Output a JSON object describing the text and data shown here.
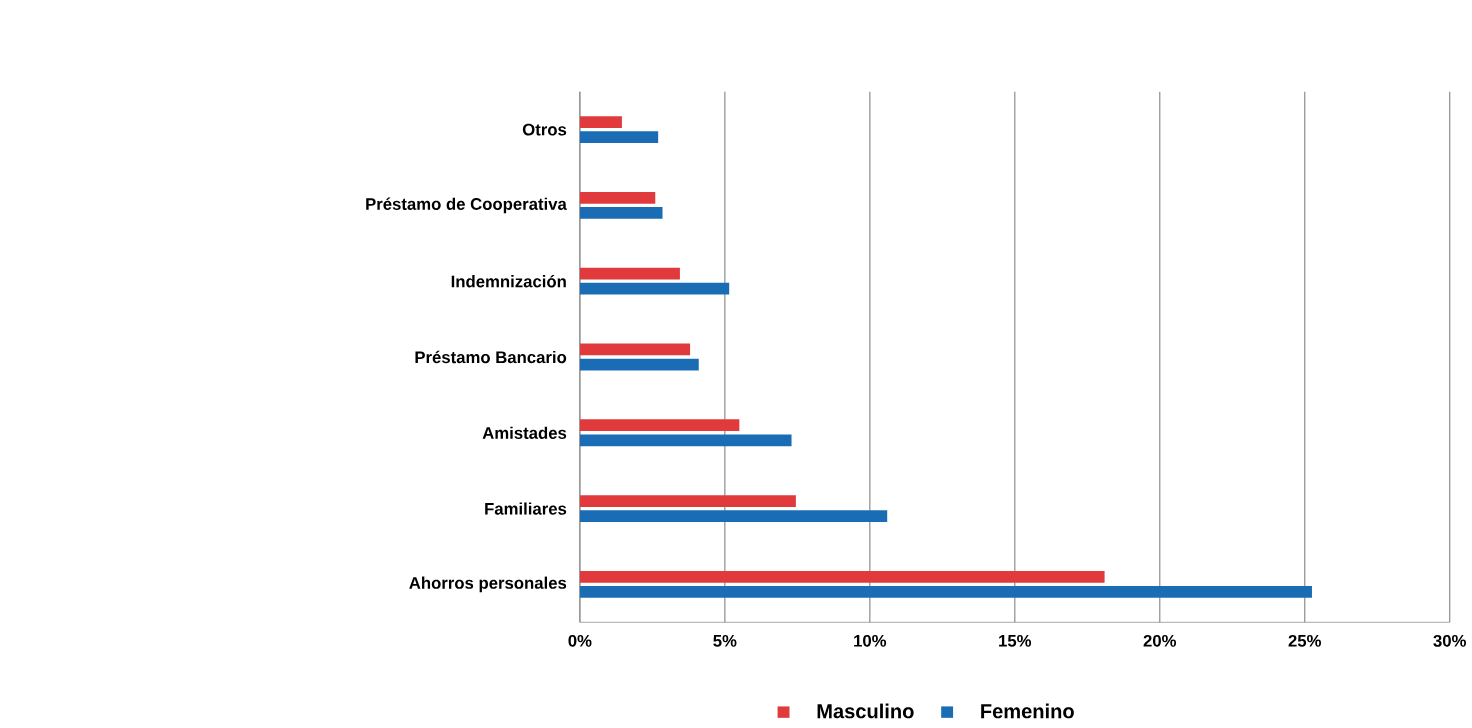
{
  "chart_data": {
    "type": "bar",
    "orientation": "horizontal",
    "categories": [
      "Otros",
      "Préstamo de Cooperativa",
      "Indemnización",
      "Préstamo Bancario",
      "Amistades",
      "Familiares",
      "Ahorros personales"
    ],
    "series": [
      {
        "name": "Masculino",
        "color": "#e03a3c",
        "values": [
          1.45,
          2.6,
          3.45,
          3.8,
          5.5,
          7.45,
          18.1
        ]
      },
      {
        "name": "Femenino",
        "color": "#1a6db5",
        "values": [
          2.7,
          2.85,
          5.15,
          4.1,
          7.3,
          10.6,
          25.25
        ]
      }
    ],
    "xlim": [
      0,
      30
    ],
    "xticks": [
      {
        "value": 0,
        "label": "0%"
      },
      {
        "value": 5,
        "label": "5%"
      },
      {
        "value": 10,
        "label": "10%"
      },
      {
        "value": 15,
        "label": "15%"
      },
      {
        "value": 20,
        "label": "20%"
      },
      {
        "value": 25,
        "label": "25%"
      },
      {
        "value": 30,
        "label": "30%"
      }
    ],
    "grid": "x",
    "legend": "bottom"
  }
}
